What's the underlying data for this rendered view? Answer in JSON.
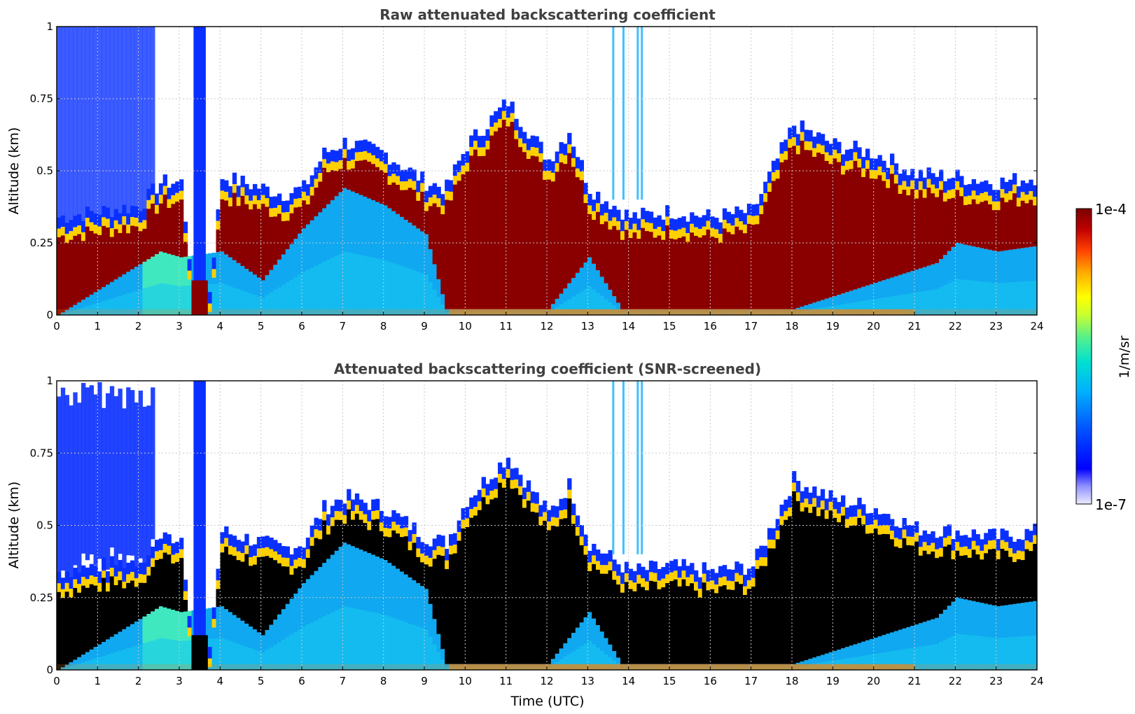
{
  "chart_data": [
    {
      "type": "heatmap",
      "title": "Raw attenuated backscattering coefficient",
      "xlabel": "",
      "ylabel": "Altitude (km)",
      "xlim": [
        0,
        24
      ],
      "ylim": [
        0,
        1
      ],
      "x_ticks": [
        "0",
        "1",
        "2",
        "3",
        "4",
        "5",
        "6",
        "7",
        "8",
        "9",
        "10",
        "11",
        "12",
        "13",
        "14",
        "15",
        "16",
        "17",
        "18",
        "19",
        "20",
        "21",
        "22",
        "23",
        "24"
      ],
      "y_ticks": [
        "0",
        "0.25",
        "0.5",
        "0.75",
        "1"
      ],
      "grid": true,
      "layer_top_km": [
        [
          0,
          0.3
        ],
        [
          1,
          0.32
        ],
        [
          2,
          0.34
        ],
        [
          2.5,
          0.42
        ],
        [
          3,
          0.42
        ],
        [
          3.3,
          0.05
        ],
        [
          3.7,
          0.05
        ],
        [
          4,
          0.44
        ],
        [
          5,
          0.4
        ],
        [
          5.5,
          0.38
        ],
        [
          6,
          0.4
        ],
        [
          6.5,
          0.52
        ],
        [
          7,
          0.56
        ],
        [
          8,
          0.52
        ],
        [
          9,
          0.42
        ],
        [
          9.5,
          0.4
        ],
        [
          10,
          0.55
        ],
        [
          11,
          0.7
        ],
        [
          12,
          0.5
        ],
        [
          12.5,
          0.6
        ],
        [
          13,
          0.4
        ],
        [
          14,
          0.3
        ],
        [
          15,
          0.32
        ],
        [
          16,
          0.3
        ],
        [
          17,
          0.32
        ],
        [
          18,
          0.62
        ],
        [
          19,
          0.55
        ],
        [
          20,
          0.52
        ],
        [
          21,
          0.45
        ],
        [
          22,
          0.44
        ],
        [
          23,
          0.42
        ],
        [
          24,
          0.44
        ]
      ],
      "layer_bottom_km": [
        [
          0,
          0.0
        ],
        [
          2.5,
          0.22
        ],
        [
          3,
          0.2
        ],
        [
          4,
          0.22
        ],
        [
          5,
          0.12
        ],
        [
          6,
          0.3
        ],
        [
          7,
          0.44
        ],
        [
          8,
          0.38
        ],
        [
          9,
          0.28
        ],
        [
          9.5,
          0.02
        ],
        [
          12,
          0.02
        ],
        [
          13,
          0.2
        ],
        [
          13.8,
          0.02
        ],
        [
          18,
          0.02
        ],
        [
          21.5,
          0.18
        ],
        [
          22,
          0.25
        ],
        [
          23,
          0.22
        ],
        [
          24,
          0.24
        ]
      ]
    },
    {
      "type": "heatmap",
      "title": "Attenuated backscattering coefficient (SNR-screened)",
      "xlabel": "Time (UTC)",
      "ylabel": "Altitude (km)",
      "xlim": [
        0,
        24
      ],
      "ylim": [
        0,
        1
      ],
      "x_ticks": [
        "0",
        "1",
        "2",
        "3",
        "4",
        "5",
        "6",
        "7",
        "8",
        "9",
        "10",
        "11",
        "12",
        "13",
        "14",
        "15",
        "16",
        "17",
        "18",
        "19",
        "20",
        "21",
        "22",
        "23",
        "24"
      ],
      "y_ticks": [
        "0",
        "0.25",
        "0.5",
        "0.75",
        "1"
      ],
      "grid": true,
      "saturated_color": "#000000"
    }
  ],
  "colorbar": {
    "label": "1/m/sr",
    "max_label": "1e-4",
    "min_label": "1e-7",
    "scale": "log",
    "range": [
      1e-07,
      0.0001
    ],
    "colors": [
      "#e8e8ff",
      "#8080ff",
      "#0000ff",
      "#0060ff",
      "#00b0ff",
      "#00e0e0",
      "#40f0a0",
      "#c0ff40",
      "#ffff00",
      "#ffc000",
      "#ff6000",
      "#e01000",
      "#a00000",
      "#800000"
    ]
  }
}
